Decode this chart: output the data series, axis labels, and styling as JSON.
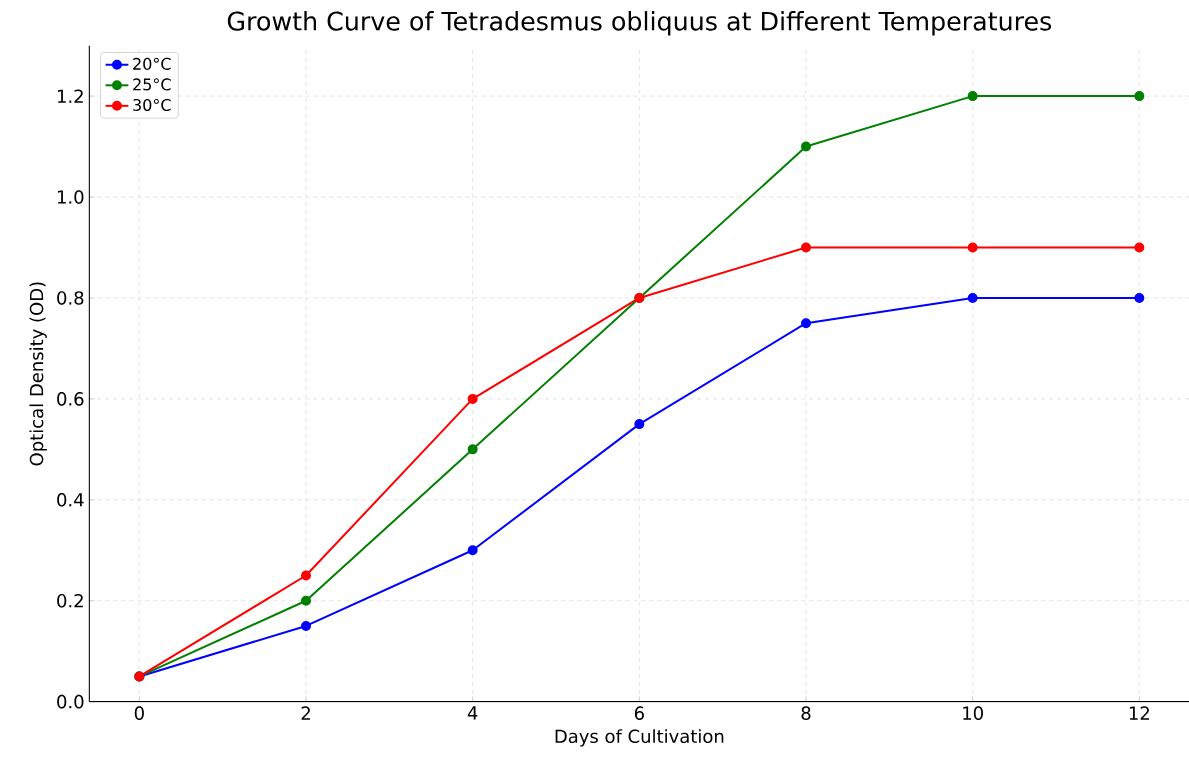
{
  "chart_data": {
    "type": "line",
    "title": "Growth Curve of Tetradesmus obliquus at Different Temperatures",
    "xlabel": "Days of Cultivation",
    "ylabel": "Optical Density (OD)",
    "x": [
      0,
      2,
      4,
      6,
      8,
      10,
      12
    ],
    "series": [
      {
        "name": "20°C",
        "color": "#0000ff",
        "values": [
          0.05,
          0.15,
          0.3,
          0.55,
          0.75,
          0.8,
          0.8
        ]
      },
      {
        "name": "25°C",
        "color": "#008000",
        "values": [
          0.05,
          0.2,
          0.5,
          0.8,
          1.1,
          1.2,
          1.2
        ]
      },
      {
        "name": "30°C",
        "color": "#ff0000",
        "values": [
          0.05,
          0.25,
          0.6,
          0.8,
          0.9,
          0.9,
          0.9
        ]
      }
    ],
    "xlim": [
      -0.6,
      12.6
    ],
    "ylim": [
      0,
      1.3
    ],
    "xticks": [
      0,
      2,
      4,
      6,
      8,
      10,
      12
    ],
    "yticks": [
      {
        "value": 0,
        "label": "0.0"
      },
      {
        "value": 0.2,
        "label": "0.2"
      },
      {
        "value": 0.4,
        "label": "0.4"
      },
      {
        "value": 0.6,
        "label": "0.6"
      },
      {
        "value": 0.8,
        "label": "0.8"
      },
      {
        "value": 1.0,
        "label": "1.0"
      },
      {
        "value": 1.2,
        "label": "1.2"
      }
    ],
    "grid": true,
    "legend": "top left",
    "marker": "circle",
    "line_style": "solid"
  }
}
